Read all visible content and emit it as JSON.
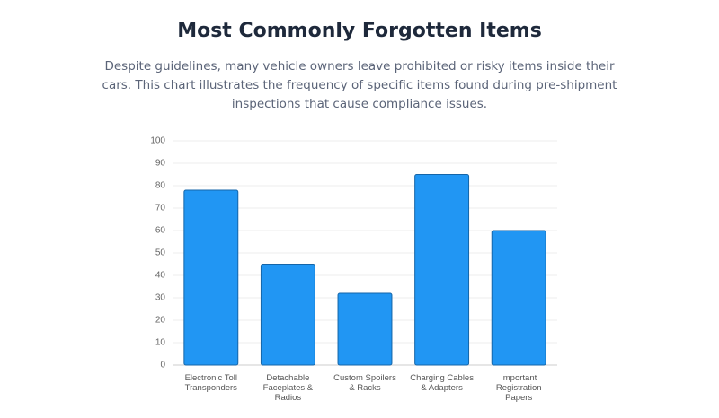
{
  "chart_data": {
    "type": "bar",
    "title": "Most Commonly Forgotten Items",
    "subtitle": "Despite guidelines, many vehicle owners leave prohibited or risky items inside their cars. This chart illustrates the frequency of specific items found during pre-shipment inspections that cause compliance issues.",
    "categories": [
      "Electronic Toll Transponders",
      "Detachable Faceplates & Radios",
      "Custom Spoilers & Racks",
      "Charging Cables & Adapters",
      "Important Registration Papers"
    ],
    "values": [
      78,
      45,
      32,
      85,
      60
    ],
    "color": "#2196f3",
    "ylim": [
      0,
      100
    ],
    "yticks": [
      0,
      10,
      20,
      30,
      40,
      50,
      60,
      70,
      80,
      90,
      100
    ],
    "grid": true
  }
}
